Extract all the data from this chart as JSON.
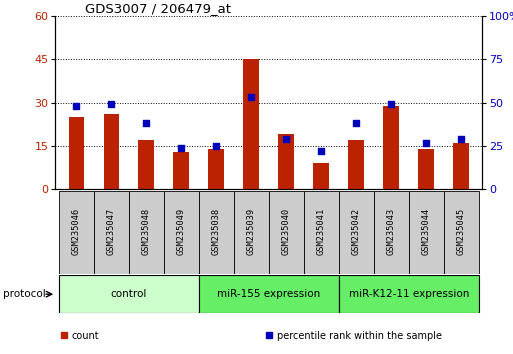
{
  "title": "GDS3007 / 206479_at",
  "samples": [
    "GSM235046",
    "GSM235047",
    "GSM235048",
    "GSM235049",
    "GSM235038",
    "GSM235039",
    "GSM235040",
    "GSM235041",
    "GSM235042",
    "GSM235043",
    "GSM235044",
    "GSM235045"
  ],
  "counts": [
    25,
    26,
    17,
    13,
    14,
    45,
    19,
    9,
    17,
    29,
    14,
    16
  ],
  "percentile_ranks": [
    48,
    49,
    38,
    24,
    25,
    53,
    29,
    22,
    38,
    49,
    27,
    29
  ],
  "groups": [
    {
      "label": "control",
      "start": 0,
      "end": 4,
      "color": "#ccffcc"
    },
    {
      "label": "miR-155 expression",
      "start": 4,
      "end": 8,
      "color": "#66ee66"
    },
    {
      "label": "miR-K12-11 expression",
      "start": 8,
      "end": 12,
      "color": "#66ee66"
    }
  ],
  "ylim_left": [
    0,
    60
  ],
  "ylim_right": [
    0,
    100
  ],
  "left_ticks": [
    0,
    15,
    30,
    45,
    60
  ],
  "right_ticks": [
    0,
    25,
    50,
    75,
    100
  ],
  "bar_color": "#bb2200",
  "dot_color": "#0000bb",
  "plot_bg": "#ffffff",
  "label_box_color": "#cccccc",
  "legend_items": [
    {
      "label": "count",
      "color": "#bb2200"
    },
    {
      "label": "percentile rank within the sample",
      "color": "#0000bb"
    }
  ]
}
